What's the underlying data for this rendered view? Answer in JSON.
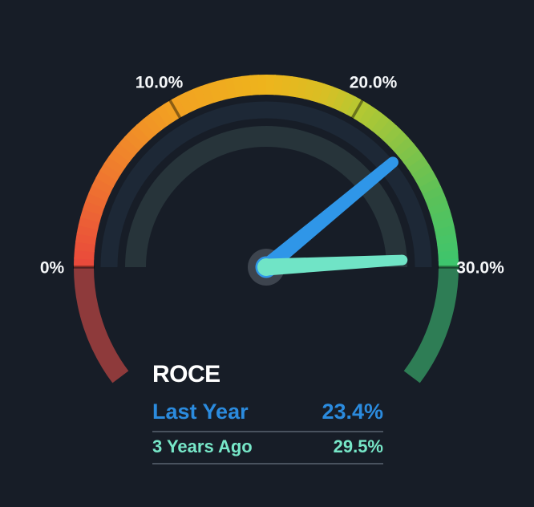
{
  "canvas": {
    "background": "#171D27"
  },
  "panel": {
    "title": "ROCE",
    "rows": [
      {
        "label": "Last Year",
        "value": "23.4%",
        "color": "#2B8BDE"
      },
      {
        "label": "3 Years Ago",
        "value": "29.5%",
        "color": "#77E7C8"
      }
    ],
    "divider_color": "#49525E"
  },
  "chart_data": {
    "type": "gauge",
    "title": "ROCE",
    "unit": "%",
    "min": 0,
    "max": 30,
    "sweep": {
      "start_deg": 180,
      "end_deg": 0,
      "underflow_sweep_deg": 37,
      "overflow_sweep_deg": 37
    },
    "ticks": [
      {
        "value": 0,
        "label": "0%"
      },
      {
        "value": 10,
        "label": "10.0%"
      },
      {
        "value": 20,
        "label": "20.0%"
      },
      {
        "value": 30,
        "label": "30.0%"
      }
    ],
    "series": [
      {
        "name": "Last Year",
        "value": 23.4,
        "display": "23.4%",
        "needle_color": "#2F96E8",
        "track_color": "#1D2836"
      },
      {
        "name": "3 Years Ago",
        "value": 29.5,
        "display": "29.5%",
        "needle_color": "#70E4C6",
        "track_color": "#27343A"
      }
    ],
    "gradient_stops": [
      {
        "at": 0.0,
        "color": "#E9483C"
      },
      {
        "at": 0.17,
        "color": "#EF7A2E"
      },
      {
        "at": 0.33,
        "color": "#F2A122"
      },
      {
        "at": 0.5,
        "color": "#EEB41C"
      },
      {
        "at": 0.6,
        "color": "#D9BE24"
      },
      {
        "at": 0.67,
        "color": "#B5C832"
      },
      {
        "at": 0.78,
        "color": "#82C348"
      },
      {
        "at": 0.87,
        "color": "#5CC158"
      },
      {
        "at": 1.0,
        "color": "#3CC56E"
      }
    ],
    "below_min_color": "#8E3A3B",
    "above_max_color": "#2E7D55",
    "tick_color": "rgba(0,0,0,0.42)",
    "hub_color": "#3D444E",
    "tick_label_color": "#F5F7F9",
    "grid": false,
    "legend_position": "bottom-left"
  }
}
